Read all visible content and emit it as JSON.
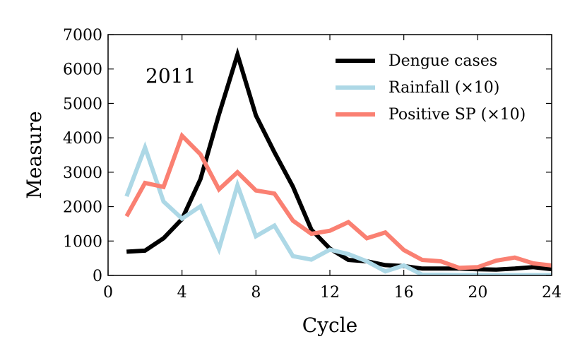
{
  "chart_data": {
    "type": "line",
    "title": "",
    "annotation": "2011",
    "xlabel": "Cycle",
    "ylabel": "Measure",
    "xlim": [
      0,
      24
    ],
    "ylim": [
      0,
      7000
    ],
    "xticks": [
      0,
      4,
      8,
      12,
      16,
      20,
      24
    ],
    "yticks": [
      0,
      1000,
      2000,
      3000,
      4000,
      5000,
      6000,
      7000
    ],
    "xtick_labels": [
      "0",
      "4",
      "8",
      "12",
      "16",
      "20",
      "24"
    ],
    "ytick_labels": [
      "0",
      "1000",
      "2000",
      "3000",
      "4000",
      "5000",
      "6000",
      "7000"
    ],
    "grid": false,
    "legend_position": "top-right",
    "x": [
      1,
      2,
      3,
      4,
      5,
      6,
      7,
      8,
      9,
      10,
      11,
      12,
      13,
      14,
      15,
      16,
      17,
      18,
      19,
      20,
      21,
      22,
      23,
      24
    ],
    "series": [
      {
        "name": "Dengue cases",
        "color": "#000000",
        "values": [
          690,
          720,
          1080,
          1640,
          2800,
          4680,
          6420,
          4650,
          3580,
          2580,
          1330,
          780,
          450,
          410,
          300,
          270,
          200,
          200,
          200,
          180,
          170,
          200,
          240,
          180
        ]
      },
      {
        "name": "Rainfall (×10)",
        "color": "#add8e6",
        "values": [
          2300,
          3720,
          2150,
          1650,
          2010,
          770,
          2620,
          1140,
          1450,
          560,
          460,
          750,
          620,
          410,
          120,
          290,
          20,
          20,
          10,
          10,
          10,
          10,
          10,
          10
        ]
      },
      {
        "name": "Positive SP (×10)",
        "color": "#fa8072",
        "values": [
          1720,
          2690,
          2570,
          4060,
          3520,
          2500,
          3000,
          2470,
          2380,
          1590,
          1210,
          1300,
          1550,
          1080,
          1250,
          740,
          450,
          410,
          220,
          240,
          430,
          520,
          350,
          290
        ]
      }
    ]
  }
}
